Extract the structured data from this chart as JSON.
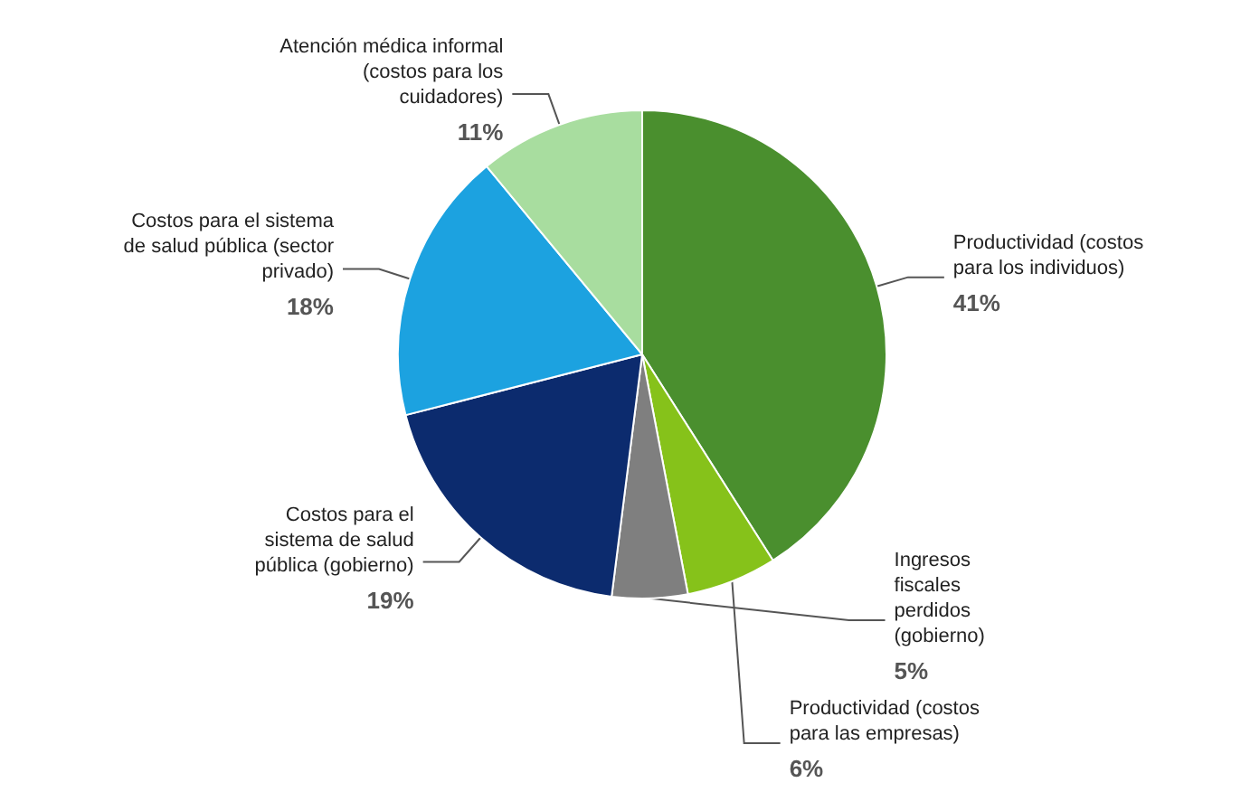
{
  "chart_data": {
    "type": "pie",
    "categories": [
      "Productividad (costos para los individuos)",
      "Productividad (costos para las empresas)",
      "Ingresos fiscales perdidos (gobierno)",
      "Costos para el sistema de salud pública (gobierno)",
      "Costos para el sistema de salud pública (sector privado)",
      "Atención médica informal (costos para los cuidadores)"
    ],
    "values": [
      41,
      6,
      5,
      19,
      18,
      11
    ],
    "colors": [
      "#4a8f2e",
      "#86c21a",
      "#7f7f7f",
      "#0c2b6e",
      "#1ca2e0",
      "#a8dd9f"
    ],
    "value_labels": [
      "41%",
      "6%",
      "5%",
      "19%",
      "18%",
      "11%"
    ]
  }
}
